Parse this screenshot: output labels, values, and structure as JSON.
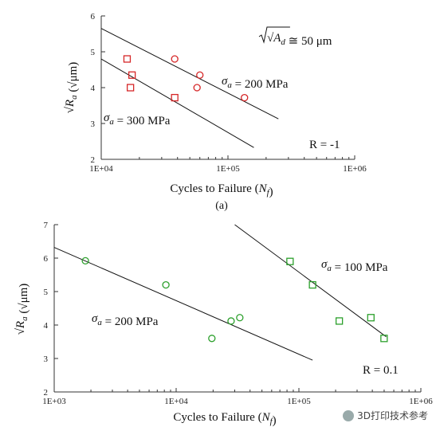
{
  "chart_data": [
    {
      "type": "scatter",
      "panel_label": "(a)",
      "xlabel": "Cycles to Failure (N_f)",
      "ylabel": "√R_a (√μm)",
      "x_scale": "log",
      "xlim": [
        10000,
        1000000
      ],
      "ylim": [
        2,
        6
      ],
      "x_tick_labels": [
        "1E+04",
        "1E+05",
        "1E+06"
      ],
      "y_tick_labels": [
        "2",
        "3",
        "4",
        "5",
        "6"
      ],
      "annotations": {
        "defect": "√A_d ≅ 50 μm",
        "ratio": "R = -1",
        "series_a": "σ_a = 200 MPa",
        "series_b": "σ_a = 300 MPa"
      },
      "series": [
        {
          "name": "σ_a = 200 MPa",
          "marker": "circle",
          "color": "#d62728",
          "points": [
            [
              38000,
              4.8
            ],
            [
              57000,
              4.0
            ],
            [
              60000,
              4.35
            ],
            [
              135000,
              3.72
            ]
          ],
          "fit": [
            [
              10000,
              5.65
            ],
            [
              250000,
              3.13
            ]
          ]
        },
        {
          "name": "σ_a = 300 MPa",
          "marker": "square",
          "color": "#d62728",
          "points": [
            [
              16000,
              4.8
            ],
            [
              17500,
              4.35
            ],
            [
              17000,
              4.0
            ],
            [
              38000,
              3.72
            ]
          ],
          "fit": [
            [
              10000,
              4.8
            ],
            [
              160000,
              2.33
            ]
          ]
        }
      ]
    },
    {
      "type": "scatter",
      "xlabel": "Cycles to Failure (N_f)",
      "ylabel": "√R_a (√μm)",
      "x_scale": "log",
      "xlim": [
        1000,
        1000000
      ],
      "ylim": [
        2,
        7
      ],
      "x_tick_labels": [
        "1E+03",
        "1E+04",
        "1E+05",
        "1E+06"
      ],
      "y_tick_labels": [
        "2",
        "3",
        "4",
        "5",
        "6",
        "7"
      ],
      "annotations": {
        "ratio": "R = 0.1",
        "series_a": "σ_a = 100 MPa",
        "series_b": "σ_a = 200 MPa"
      },
      "series": [
        {
          "name": "σ_a = 100 MPa",
          "marker": "square",
          "color": "#2ca02c",
          "points": [
            [
              85000,
              5.9
            ],
            [
              130000,
              5.2
            ],
            [
              215000,
              4.12
            ],
            [
              390000,
              4.22
            ],
            [
              500000,
              3.6
            ]
          ],
          "fit": [
            [
              30000,
              7.0
            ],
            [
              520000,
              3.65
            ]
          ]
        },
        {
          "name": "σ_a = 200 MPa",
          "marker": "circle",
          "color": "#2ca02c",
          "points": [
            [
              1800,
              5.92
            ],
            [
              8200,
              5.2
            ],
            [
              19500,
              3.6
            ],
            [
              28000,
              4.12
            ],
            [
              33000,
              4.22
            ]
          ],
          "fit": [
            [
              1000,
              6.32
            ],
            [
              130000,
              2.95
            ]
          ]
        }
      ]
    }
  ],
  "watermark": "3D打印技术参考"
}
